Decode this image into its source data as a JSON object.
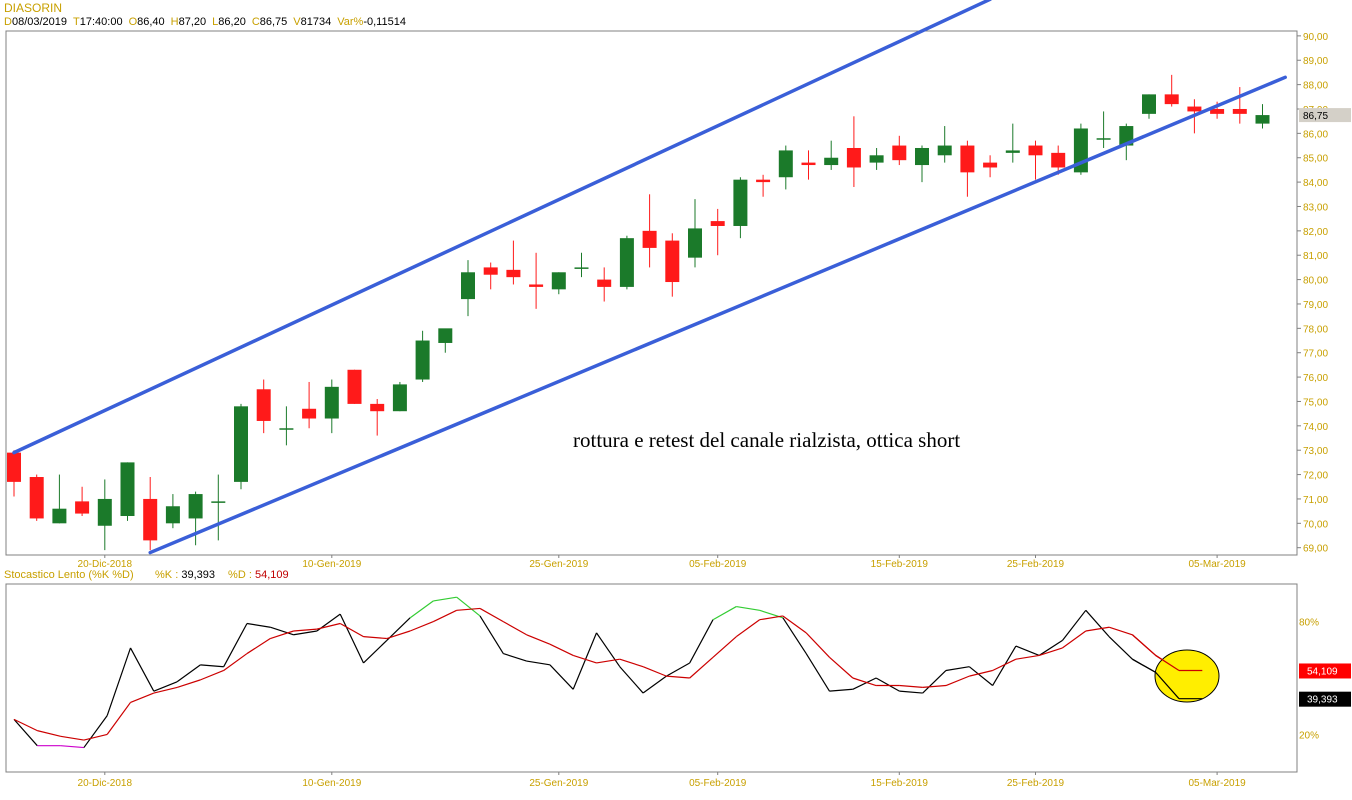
{
  "header": {
    "symbol": "DIASORIN",
    "fields": [
      {
        "label": "D",
        "value": "08/03/2019"
      },
      {
        "label": "T",
        "value": "17:40:00"
      },
      {
        "label": "O",
        "value": "86,40"
      },
      {
        "label": "H",
        "value": "87,20"
      },
      {
        "label": "L",
        "value": "86,20"
      },
      {
        "label": "C",
        "value": "86,75"
      },
      {
        "label": "V",
        "value": "81734"
      },
      {
        "label": "Var%",
        "value": "-0,11514"
      }
    ]
  },
  "colors": {
    "up": "#1b7a2a",
    "down": "#ff1a1a",
    "channel": "#3a5fd8",
    "k_line": "#000000",
    "d_line": "#cc0000",
    "overbought": "#33cc33",
    "oversold": "#cc00cc",
    "highlight": "#ffee00"
  },
  "annotation": "rottura e retest del canale rialzista, ottica short",
  "chart_data": [
    {
      "type": "candlestick",
      "title": "DIASORIN",
      "ylim": [
        68.7,
        90.2
      ],
      "y_ticks": [
        "90,00",
        "89,00",
        "88,00",
        "87,00",
        "86,00",
        "85,00",
        "84,00",
        "83,00",
        "82,00",
        "81,00",
        "80,00",
        "79,00",
        "78,00",
        "77,00",
        "76,00",
        "75,00",
        "74,00",
        "73,00",
        "72,00",
        "71,00",
        "70,00",
        "69,00"
      ],
      "last_price_label": "86,75",
      "x_tick_labels": [
        "20-Dic-2018",
        "10-Gen-2019",
        "25-Gen-2019",
        "05-Feb-2019",
        "15-Feb-2019",
        "25-Feb-2019",
        "05-Mar-2019"
      ],
      "x_tick_index": [
        4,
        14,
        24,
        31,
        39,
        45,
        53
      ],
      "candles": [
        {
          "o": 72.9,
          "h": 73.0,
          "l": 71.1,
          "c": 71.7
        },
        {
          "o": 71.9,
          "h": 72.0,
          "l": 70.1,
          "c": 70.2
        },
        {
          "o": 70.0,
          "h": 72.0,
          "l": 70.0,
          "c": 70.6
        },
        {
          "o": 70.9,
          "h": 71.5,
          "l": 70.3,
          "c": 70.4
        },
        {
          "o": 69.9,
          "h": 71.8,
          "l": 68.9,
          "c": 71.0
        },
        {
          "o": 70.3,
          "h": 72.5,
          "l": 70.1,
          "c": 72.5
        },
        {
          "o": 71.0,
          "h": 71.9,
          "l": 68.9,
          "c": 69.3
        },
        {
          "o": 70.0,
          "h": 71.2,
          "l": 69.8,
          "c": 70.7
        },
        {
          "o": 70.2,
          "h": 71.3,
          "l": 69.1,
          "c": 71.2
        },
        {
          "o": 70.9,
          "h": 72.0,
          "l": 69.3,
          "c": 70.9
        },
        {
          "o": 71.7,
          "h": 74.9,
          "l": 71.4,
          "c": 74.8
        },
        {
          "o": 75.5,
          "h": 75.9,
          "l": 73.7,
          "c": 74.2
        },
        {
          "o": 73.9,
          "h": 74.8,
          "l": 73.2,
          "c": 73.9
        },
        {
          "o": 74.7,
          "h": 75.8,
          "l": 73.9,
          "c": 74.3
        },
        {
          "o": 74.3,
          "h": 75.9,
          "l": 73.7,
          "c": 75.6
        },
        {
          "o": 76.3,
          "h": 76.3,
          "l": 74.9,
          "c": 74.9
        },
        {
          "o": 74.9,
          "h": 75.1,
          "l": 73.6,
          "c": 74.6
        },
        {
          "o": 74.6,
          "h": 75.8,
          "l": 74.6,
          "c": 75.7
        },
        {
          "o": 75.9,
          "h": 77.9,
          "l": 75.8,
          "c": 77.5
        },
        {
          "o": 77.4,
          "h": 77.9,
          "l": 77.0,
          "c": 78.0
        },
        {
          "o": 79.2,
          "h": 80.8,
          "l": 78.5,
          "c": 80.3
        },
        {
          "o": 80.5,
          "h": 80.7,
          "l": 79.6,
          "c": 80.2
        },
        {
          "o": 80.4,
          "h": 81.6,
          "l": 79.8,
          "c": 80.1
        },
        {
          "o": 79.8,
          "h": 81.1,
          "l": 78.8,
          "c": 79.7
        },
        {
          "o": 79.6,
          "h": 80.3,
          "l": 79.4,
          "c": 80.3
        },
        {
          "o": 80.5,
          "h": 81.1,
          "l": 80.1,
          "c": 80.5
        },
        {
          "o": 80.0,
          "h": 80.5,
          "l": 79.1,
          "c": 79.7
        },
        {
          "o": 79.7,
          "h": 81.8,
          "l": 79.6,
          "c": 81.7
        },
        {
          "o": 82.0,
          "h": 83.5,
          "l": 80.5,
          "c": 81.3
        },
        {
          "o": 81.6,
          "h": 81.9,
          "l": 79.3,
          "c": 79.9
        },
        {
          "o": 80.9,
          "h": 83.3,
          "l": 80.5,
          "c": 82.1
        },
        {
          "o": 82.4,
          "h": 82.9,
          "l": 81.0,
          "c": 82.2
        },
        {
          "o": 82.2,
          "h": 84.2,
          "l": 81.7,
          "c": 84.1
        },
        {
          "o": 84.1,
          "h": 84.3,
          "l": 83.4,
          "c": 84.0
        },
        {
          "o": 84.2,
          "h": 85.5,
          "l": 83.7,
          "c": 85.3
        },
        {
          "o": 84.8,
          "h": 85.3,
          "l": 84.1,
          "c": 84.7
        },
        {
          "o": 84.7,
          "h": 85.7,
          "l": 84.5,
          "c": 85.0
        },
        {
          "o": 85.4,
          "h": 86.7,
          "l": 83.8,
          "c": 84.6
        },
        {
          "o": 84.8,
          "h": 85.4,
          "l": 84.5,
          "c": 85.1
        },
        {
          "o": 85.5,
          "h": 85.9,
          "l": 84.7,
          "c": 84.9
        },
        {
          "o": 84.7,
          "h": 85.5,
          "l": 84.0,
          "c": 85.4
        },
        {
          "o": 85.1,
          "h": 86.3,
          "l": 84.8,
          "c": 85.5
        },
        {
          "o": 85.5,
          "h": 85.7,
          "l": 83.4,
          "c": 84.4
        },
        {
          "o": 84.8,
          "h": 85.1,
          "l": 84.2,
          "c": 84.6
        },
        {
          "o": 85.2,
          "h": 86.4,
          "l": 84.8,
          "c": 85.3
        },
        {
          "o": 85.5,
          "h": 85.7,
          "l": 84.1,
          "c": 85.1
        },
        {
          "o": 85.2,
          "h": 85.5,
          "l": 84.3,
          "c": 84.6
        },
        {
          "o": 84.4,
          "h": 86.4,
          "l": 84.3,
          "c": 86.2
        },
        {
          "o": 85.8,
          "h": 86.9,
          "l": 85.4,
          "c": 85.8
        },
        {
          "o": 85.5,
          "h": 86.4,
          "l": 84.9,
          "c": 86.3
        },
        {
          "o": 86.8,
          "h": 87.6,
          "l": 86.6,
          "c": 87.6
        },
        {
          "o": 87.6,
          "h": 88.4,
          "l": 87.1,
          "c": 87.2
        },
        {
          "o": 87.1,
          "h": 87.4,
          "l": 86.0,
          "c": 86.9
        },
        {
          "o": 87.0,
          "h": 87.3,
          "l": 86.6,
          "c": 86.8
        },
        {
          "o": 87.0,
          "h": 87.9,
          "l": 86.4,
          "c": 86.8
        },
        {
          "o": 86.4,
          "h": 87.2,
          "l": 86.2,
          "c": 86.75
        }
      ],
      "channel_lines": [
        {
          "from": {
            "i": 0,
            "y": 72.9
          },
          "to": {
            "i": 43,
            "y": 91.5
          }
        },
        {
          "from": {
            "i": 6,
            "y": 68.8
          },
          "to": {
            "i": 56,
            "y": 88.3
          }
        }
      ]
    },
    {
      "type": "line",
      "title": "Stocastico Lento (%K %D)",
      "k_label": "%K :",
      "k_value": "39,393",
      "d_label": "%D :",
      "d_value": "54,109",
      "ylim": [
        0,
        100
      ],
      "y_ticks": [
        {
          "v": 80,
          "label": "80%"
        },
        {
          "v": 20,
          "label": "20%"
        }
      ],
      "series": [
        {
          "name": "%K",
          "values": [
            28,
            14,
            14,
            13,
            30,
            66,
            43,
            48,
            57,
            56,
            79,
            77,
            73,
            75,
            84,
            58,
            70,
            82,
            91,
            93,
            83,
            63,
            59,
            57,
            44,
            74,
            56,
            42,
            51,
            58,
            81,
            88,
            86,
            82,
            63,
            43,
            44,
            50,
            43,
            42,
            54,
            56,
            46,
            67,
            62,
            70,
            86,
            72,
            60,
            53,
            39,
            39
          ]
        },
        {
          "name": "%D",
          "values": [
            28,
            22,
            19,
            17,
            20,
            37,
            42,
            45,
            49,
            54,
            63,
            71,
            75,
            76,
            79,
            72,
            71,
            75,
            80,
            86,
            87,
            80,
            73,
            68,
            62,
            58,
            60,
            56,
            51,
            50,
            61,
            72,
            81,
            83,
            74,
            61,
            50,
            46,
            46,
            45,
            46,
            51,
            54,
            60,
            62,
            66,
            75,
            77,
            73,
            62,
            54,
            54
          ]
        }
      ]
    }
  ]
}
